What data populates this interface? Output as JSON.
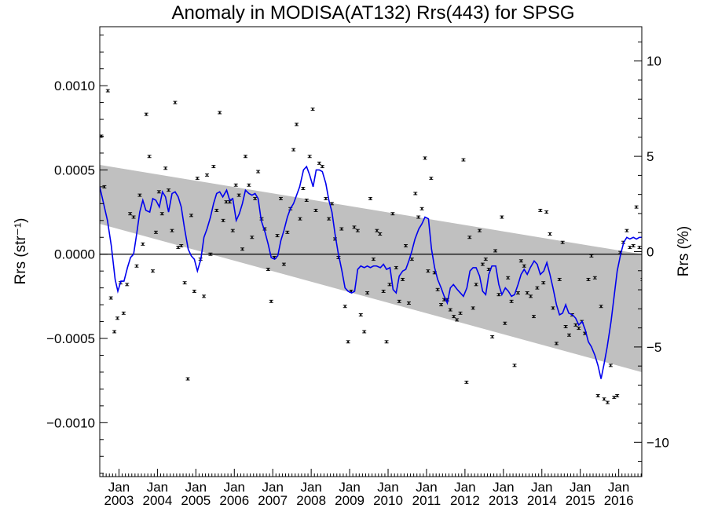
{
  "chart_data": {
    "type": "scatter",
    "title": "Anomaly in MODISA(AT132) Rrs(443) for SPSG",
    "ylabel_left": "Rrs (str⁻¹)",
    "ylabel_right": "Rrs (%)",
    "xlim": [
      2002.5,
      2016.6
    ],
    "ylim_left": [
      -0.00132,
      0.00135
    ],
    "ylim_right": [
      -11.8,
      11.8
    ],
    "y_ticks_left": [
      {
        "value": 0.001,
        "label": "0.0010"
      },
      {
        "value": 0.0005,
        "label": "0.0005"
      },
      {
        "value": 0.0,
        "label": "0.0000"
      },
      {
        "value": -0.0005,
        "label": "−0.0005"
      },
      {
        "value": -0.001,
        "label": "−0.0010"
      }
    ],
    "y_ticks_right": [
      {
        "value": 10,
        "label": "10"
      },
      {
        "value": 5,
        "label": "5"
      },
      {
        "value": 0,
        "label": "0"
      },
      {
        "value": -5,
        "label": "−5"
      },
      {
        "value": -10,
        "label": "−10"
      }
    ],
    "x_ticks": [
      {
        "value": 2003.0,
        "month": "Jan",
        "year": "2003"
      },
      {
        "value": 2004.0,
        "month": "Jan",
        "year": "2004"
      },
      {
        "value": 2005.0,
        "month": "Jan",
        "year": "2005"
      },
      {
        "value": 2006.0,
        "month": "Jan",
        "year": "2006"
      },
      {
        "value": 2007.0,
        "month": "Jan",
        "year": "2007"
      },
      {
        "value": 2008.0,
        "month": "Jan",
        "year": "2008"
      },
      {
        "value": 2009.0,
        "month": "Jan",
        "year": "2009"
      },
      {
        "value": 2010.0,
        "month": "Jan",
        "year": "2010"
      },
      {
        "value": 2011.0,
        "month": "Jan",
        "year": "2011"
      },
      {
        "value": 2012.0,
        "month": "Jan",
        "year": "2012"
      },
      {
        "value": 2013.0,
        "month": "Jan",
        "year": "2013"
      },
      {
        "value": 2014.0,
        "month": "Jan",
        "year": "2014"
      },
      {
        "value": 2015.0,
        "month": "Jan",
        "year": "2015"
      },
      {
        "value": 2016.0,
        "month": "Jan",
        "year": "2016"
      }
    ],
    "trend_band": {
      "upper": [
        [
          2002.5,
          0.00053
        ],
        [
          2016.6,
          0.0
        ]
      ],
      "lower": [
        [
          2002.5,
          0.00018
        ],
        [
          2016.6,
          -0.0007
        ]
      ]
    },
    "monthly_points": [
      [
        2002.54,
        0.0007
      ],
      [
        2002.62,
        0.0004
      ],
      [
        2002.71,
        0.00097
      ],
      [
        2002.79,
        -0.00026
      ],
      [
        2002.88,
        -0.00046
      ],
      [
        2002.96,
        -0.00038
      ],
      [
        2003.04,
        -0.00017
      ],
      [
        2003.12,
        -0.00035
      ],
      [
        2003.21,
        -0.00018
      ],
      [
        2003.29,
        0.00024
      ],
      [
        2003.38,
        0.00022
      ],
      [
        2003.46,
        -7e-05
      ],
      [
        2003.54,
        0.00035
      ],
      [
        2003.62,
        6e-05
      ],
      [
        2003.71,
        0.00083
      ],
      [
        2003.79,
        0.00058
      ],
      [
        2003.88,
        -0.0001
      ],
      [
        2003.96,
        0.00013
      ],
      [
        2004.04,
        0.00037
      ],
      [
        2004.12,
        0.00024
      ],
      [
        2004.21,
        0.00051
      ],
      [
        2004.29,
        0.00038
      ],
      [
        2004.38,
        0.00014
      ],
      [
        2004.46,
        0.0009
      ],
      [
        2004.54,
        4e-05
      ],
      [
        2004.62,
        5e-05
      ],
      [
        2004.71,
        -0.00017
      ],
      [
        2004.79,
        -0.00074
      ],
      [
        2004.88,
        0.00023
      ],
      [
        2004.96,
        -0.00022
      ],
      [
        2005.04,
        0.00045
      ],
      [
        2005.12,
        -3e-05
      ],
      [
        2005.21,
        -0.00025
      ],
      [
        2005.29,
        0.00047
      ],
      [
        2005.38,
        0.0
      ],
      [
        2005.46,
        0.00052
      ],
      [
        2005.54,
        0.00026
      ],
      [
        2005.62,
        0.00084
      ],
      [
        2005.71,
        0.0002
      ],
      [
        2005.79,
        0.00031
      ],
      [
        2005.88,
        0.00031
      ],
      [
        2005.96,
        0.00014
      ],
      [
        2006.04,
        0.00041
      ],
      [
        2006.12,
        0.00035
      ],
      [
        2006.21,
        3e-05
      ],
      [
        2006.29,
        0.00058
      ],
      [
        2006.38,
        0.00041
      ],
      [
        2006.46,
        0.0001
      ],
      [
        2006.54,
        0.00033
      ],
      [
        2006.62,
        0.00049
      ],
      [
        2006.71,
        0.00021
      ],
      [
        2006.79,
        0.00015
      ],
      [
        2006.88,
        -9e-05
      ],
      [
        2006.96,
        -0.00028
      ],
      [
        2007.04,
        -2e-05
      ],
      [
        2007.12,
        0.00011
      ],
      [
        2007.21,
        0.00033
      ],
      [
        2007.29,
        -6e-05
      ],
      [
        2007.38,
        0.00013
      ],
      [
        2007.46,
        0.00027
      ],
      [
        2007.54,
        0.00062
      ],
      [
        2007.62,
        0.00077
      ],
      [
        2007.71,
        0.00021
      ],
      [
        2007.79,
        0.00039
      ],
      [
        2007.88,
        0.00032
      ],
      [
        2007.96,
        0.00058
      ],
      [
        2008.04,
        0.00086
      ],
      [
        2008.12,
        0.00026
      ],
      [
        2008.21,
        0.00054
      ],
      [
        2008.29,
        0.00052
      ],
      [
        2008.38,
        0.00033
      ],
      [
        2008.46,
        0.00021
      ],
      [
        2008.54,
        0.0003
      ],
      [
        2008.62,
        9e-05
      ],
      [
        2008.71,
        -2e-05
      ],
      [
        2008.79,
        0.00015
      ],
      [
        2008.88,
        -0.00031
      ],
      [
        2008.96,
        -0.00052
      ],
      [
        2009.04,
        -0.00022
      ],
      [
        2009.12,
        0.00016
      ],
      [
        2009.21,
        0.00014
      ],
      [
        2009.29,
        -0.00036
      ],
      [
        2009.38,
        -0.00046
      ],
      [
        2009.46,
        -0.00023
      ],
      [
        2009.54,
        0.00033
      ],
      [
        2009.62,
        -3e-05
      ],
      [
        2009.71,
        0.00014
      ],
      [
        2009.79,
        0.00012
      ],
      [
        2009.88,
        -0.00022
      ],
      [
        2009.96,
        -0.00052
      ],
      [
        2010.04,
        -0.00018
      ],
      [
        2010.12,
        0.00024
      ],
      [
        2010.21,
        -8e-05
      ],
      [
        2010.29,
        -0.00028
      ],
      [
        2010.38,
        -0.00015
      ],
      [
        2010.46,
        5e-05
      ],
      [
        2010.54,
        -0.00029
      ],
      [
        2010.62,
        -3e-05
      ],
      [
        2010.71,
        0.00036
      ],
      [
        2010.79,
        0.00022
      ],
      [
        2010.88,
        0.00027
      ],
      [
        2010.96,
        0.00057
      ],
      [
        2011.04,
        -0.0001
      ],
      [
        2011.12,
        0.00045
      ],
      [
        2011.21,
        -0.00011
      ],
      [
        2011.29,
        -0.00021
      ],
      [
        2011.38,
        -0.0003
      ],
      [
        2011.46,
        -0.00027
      ],
      [
        2011.54,
        -0.00027
      ],
      [
        2011.62,
        -0.00033
      ],
      [
        2011.71,
        -0.00037
      ],
      [
        2011.79,
        -0.00039
      ],
      [
        2011.88,
        -0.00035
      ],
      [
        2011.96,
        0.00056
      ],
      [
        2012.04,
        -0.00076
      ],
      [
        2012.12,
        0.0001
      ],
      [
        2012.21,
        -0.00032
      ],
      [
        2012.29,
        -0.00018
      ],
      [
        2012.38,
        0.00014
      ],
      [
        2012.46,
        -6e-05
      ],
      [
        2012.54,
        -3e-05
      ],
      [
        2012.62,
        -9e-05
      ],
      [
        2012.71,
        -0.00049
      ],
      [
        2012.79,
        2e-05
      ],
      [
        2012.88,
        -0.00024
      ],
      [
        2012.96,
        0.00022
      ],
      [
        2013.04,
        -0.00041
      ],
      [
        2013.12,
        -0.00014
      ],
      [
        2013.21,
        -0.00028
      ],
      [
        2013.29,
        -0.00066
      ],
      [
        2013.38,
        -0.00023
      ],
      [
        2013.46,
        -4e-05
      ],
      [
        2013.54,
        -7e-05
      ],
      [
        2013.62,
        -0.00023
      ],
      [
        2013.71,
        -0.00025
      ],
      [
        2013.79,
        -0.00037
      ],
      [
        2013.88,
        -0.0002
      ],
      [
        2013.96,
        0.00026
      ],
      [
        2014.04,
        -0.00017
      ],
      [
        2014.12,
        0.00025
      ],
      [
        2014.21,
        0.00012
      ],
      [
        2014.29,
        -0.00032
      ],
      [
        2014.38,
        -0.00053
      ],
      [
        2014.46,
        -0.00015
      ],
      [
        2014.54,
        7e-05
      ],
      [
        2014.62,
        -0.00043
      ],
      [
        2014.71,
        -0.00048
      ],
      [
        2014.79,
        -0.00036
      ],
      [
        2014.88,
        -0.00042
      ],
      [
        2014.96,
        -0.00044
      ],
      [
        2015.04,
        -0.0004
      ],
      [
        2015.12,
        -0.00047
      ],
      [
        2015.21,
        -0.00015
      ],
      [
        2015.29,
        -1e-05
      ],
      [
        2015.38,
        -0.00014
      ],
      [
        2015.46,
        -0.00084
      ],
      [
        2015.54,
        -0.00031
      ],
      [
        2015.62,
        -0.00086
      ],
      [
        2015.71,
        -0.00088
      ],
      [
        2015.79,
        -0.00066
      ],
      [
        2015.88,
        -0.00085
      ],
      [
        2015.96,
        -0.00084
      ],
      [
        2016.04,
        1e-05
      ],
      [
        2016.12,
        7e-05
      ],
      [
        2016.21,
        0.00014
      ],
      [
        2016.29,
        4e-05
      ],
      [
        2016.38,
        5e-05
      ],
      [
        2016.46,
        0.00028
      ],
      [
        2016.54,
        4e-05
      ],
      [
        2016.62,
        -0.00015
      ],
      [
        2016.7,
        0.00024
      ]
    ],
    "running_mean": [
      [
        2002.5,
        0.0004
      ],
      [
        2002.6,
        0.0003
      ],
      [
        2002.7,
        0.0002
      ],
      [
        2002.8,
        5e-05
      ],
      [
        2002.9,
        -0.00015
      ],
      [
        2002.97,
        -0.00022
      ],
      [
        2003.05,
        -0.00016
      ],
      [
        2003.13,
        -0.00016
      ],
      [
        2003.22,
        -8e-05
      ],
      [
        2003.3,
        -2e-05
      ],
      [
        2003.38,
        0.0
      ],
      [
        2003.46,
        0.00012
      ],
      [
        2003.54,
        0.00025
      ],
      [
        2003.62,
        0.00032
      ],
      [
        2003.7,
        0.00026
      ],
      [
        2003.8,
        0.00025
      ],
      [
        2003.88,
        0.00033
      ],
      [
        2003.96,
        0.00032
      ],
      [
        2004.05,
        0.00028
      ],
      [
        2004.13,
        0.00037
      ],
      [
        2004.21,
        0.00034
      ],
      [
        2004.29,
        0.00025
      ],
      [
        2004.38,
        0.00036
      ],
      [
        2004.46,
        0.00037
      ],
      [
        2004.54,
        0.00034
      ],
      [
        2004.62,
        0.00028
      ],
      [
        2004.7,
        0.00016
      ],
      [
        2004.8,
        3e-05
      ],
      [
        2004.88,
        -1e-05
      ],
      [
        2004.96,
        -3e-05
      ],
      [
        2005.04,
        -0.0001
      ],
      [
        2005.13,
        -3e-05
      ],
      [
        2005.21,
        0.0001
      ],
      [
        2005.29,
        0.00015
      ],
      [
        2005.38,
        0.00022
      ],
      [
        2005.46,
        0.0003
      ],
      [
        2005.54,
        0.00036
      ],
      [
        2005.62,
        0.00037
      ],
      [
        2005.7,
        0.00034
      ],
      [
        2005.8,
        0.00038
      ],
      [
        2005.88,
        0.00032
      ],
      [
        2005.96,
        0.00033
      ],
      [
        2006.05,
        0.0002
      ],
      [
        2006.13,
        0.00024
      ],
      [
        2006.21,
        0.0003
      ],
      [
        2006.29,
        0.00038
      ],
      [
        2006.38,
        0.00036
      ],
      [
        2006.46,
        0.00035
      ],
      [
        2006.54,
        0.00036
      ],
      [
        2006.62,
        0.00033
      ],
      [
        2006.7,
        0.0002
      ],
      [
        2006.8,
        0.00013
      ],
      [
        2006.88,
        6e-05
      ],
      [
        2006.96,
        -2e-05
      ],
      [
        2007.05,
        -3e-05
      ],
      [
        2007.13,
        -1e-05
      ],
      [
        2007.21,
        8e-05
      ],
      [
        2007.29,
        0.00014
      ],
      [
        2007.38,
        0.00022
      ],
      [
        2007.46,
        0.00027
      ],
      [
        2007.54,
        0.0003
      ],
      [
        2007.62,
        0.00035
      ],
      [
        2007.7,
        0.0004
      ],
      [
        2007.8,
        0.0005
      ],
      [
        2007.88,
        0.00052
      ],
      [
        2007.96,
        0.00047
      ],
      [
        2008.05,
        0.0004
      ],
      [
        2008.13,
        0.0005
      ],
      [
        2008.21,
        0.0005
      ],
      [
        2008.29,
        0.00049
      ],
      [
        2008.38,
        0.00042
      ],
      [
        2008.46,
        0.00032
      ],
      [
        2008.54,
        0.00025
      ],
      [
        2008.62,
        0.00012
      ],
      [
        2008.7,
        1e-05
      ],
      [
        2008.8,
        -0.0001
      ],
      [
        2008.88,
        -0.0002
      ],
      [
        2008.96,
        -0.00022
      ],
      [
        2009.05,
        -0.00023
      ],
      [
        2009.13,
        -0.00022
      ],
      [
        2009.21,
        -9e-05
      ],
      [
        2009.29,
        -7e-05
      ],
      [
        2009.38,
        -8e-05
      ],
      [
        2009.46,
        -7e-05
      ],
      [
        2009.54,
        -8e-05
      ],
      [
        2009.62,
        -7e-05
      ],
      [
        2009.7,
        -7e-05
      ],
      [
        2009.8,
        -8e-05
      ],
      [
        2009.88,
        -6e-05
      ],
      [
        2009.96,
        -9e-05
      ],
      [
        2010.05,
        -8e-05
      ],
      [
        2010.13,
        -0.00021
      ],
      [
        2010.21,
        -0.00023
      ],
      [
        2010.29,
        -0.00013
      ],
      [
        2010.38,
        -0.0001
      ],
      [
        2010.46,
        -9e-05
      ],
      [
        2010.54,
        -4e-05
      ],
      [
        2010.62,
        2e-05
      ],
      [
        2010.7,
        9e-05
      ],
      [
        2010.8,
        0.00015
      ],
      [
        2010.88,
        0.00018
      ],
      [
        2010.96,
        0.00022
      ],
      [
        2011.05,
        0.00021
      ],
      [
        2011.13,
        3e-05
      ],
      [
        2011.21,
        -8e-05
      ],
      [
        2011.29,
        -0.00015
      ],
      [
        2011.38,
        -0.0002
      ],
      [
        2011.46,
        -0.00025
      ],
      [
        2011.54,
        -0.00029
      ],
      [
        2011.62,
        -0.0002
      ],
      [
        2011.7,
        -0.00018
      ],
      [
        2011.8,
        -0.00021
      ],
      [
        2011.88,
        -0.00023
      ],
      [
        2011.96,
        -0.00025
      ],
      [
        2012.05,
        -0.0002
      ],
      [
        2012.13,
        -0.0001
      ],
      [
        2012.21,
        -8e-05
      ],
      [
        2012.29,
        -8e-05
      ],
      [
        2012.38,
        -0.00013
      ],
      [
        2012.46,
        -0.00022
      ],
      [
        2012.54,
        -0.00024
      ],
      [
        2012.62,
        -0.00012
      ],
      [
        2012.7,
        -7e-05
      ],
      [
        2012.8,
        -7e-05
      ],
      [
        2012.88,
        -0.00018
      ],
      [
        2012.96,
        -0.00024
      ],
      [
        2013.05,
        -0.0002
      ],
      [
        2013.13,
        -0.00022
      ],
      [
        2013.21,
        -0.00025
      ],
      [
        2013.29,
        -0.00024
      ],
      [
        2013.38,
        -0.00018
      ],
      [
        2013.46,
        -0.00012
      ],
      [
        2013.54,
        -9e-05
      ],
      [
        2013.62,
        -0.00012
      ],
      [
        2013.7,
        -8e-05
      ],
      [
        2013.8,
        -4e-05
      ],
      [
        2013.88,
        -6e-05
      ],
      [
        2013.96,
        -0.00012
      ],
      [
        2014.05,
        -0.0001
      ],
      [
        2014.13,
        -5e-05
      ],
      [
        2014.21,
        -0.00012
      ],
      [
        2014.29,
        -0.0002
      ],
      [
        2014.38,
        -0.0003
      ],
      [
        2014.46,
        -0.00036
      ],
      [
        2014.54,
        -0.00035
      ],
      [
        2014.62,
        -0.0003
      ],
      [
        2014.7,
        -0.00035
      ],
      [
        2014.8,
        -0.00036
      ],
      [
        2014.88,
        -0.00038
      ],
      [
        2014.96,
        -0.00042
      ],
      [
        2015.05,
        -0.0004
      ],
      [
        2015.13,
        -0.00045
      ],
      [
        2015.21,
        -0.00052
      ],
      [
        2015.29,
        -0.00055
      ],
      [
        2015.38,
        -0.0006
      ],
      [
        2015.46,
        -0.00066
      ],
      [
        2015.54,
        -0.00074
      ],
      [
        2015.62,
        -0.00065
      ],
      [
        2015.7,
        -0.00055
      ],
      [
        2015.8,
        -0.0004
      ],
      [
        2015.88,
        -0.00025
      ],
      [
        2015.96,
        -0.0001
      ],
      [
        2016.05,
        0.0
      ],
      [
        2016.13,
        7e-05
      ],
      [
        2016.21,
        0.0001
      ],
      [
        2016.29,
        9e-05
      ],
      [
        2016.38,
        0.0001
      ],
      [
        2016.46,
        9e-05
      ],
      [
        2016.54,
        0.0001
      ],
      [
        2016.62,
        0.0001
      ]
    ],
    "colors": {
      "band": "#c0c0c0",
      "line": "#0000ee",
      "points": "#000000",
      "zero_line": "#000000"
    }
  }
}
